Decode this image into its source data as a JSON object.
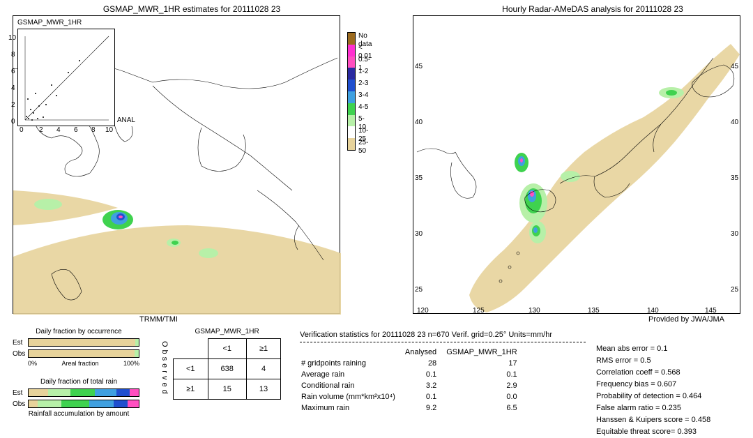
{
  "left_map": {
    "title": "GSMAP_MWR_1HR estimates for 20111028 23",
    "footer": "TRMM/TMI",
    "inset_label": "GSMAP_MWR_1HR",
    "inset_right_label": "ANAL",
    "inset_ticks_x": [
      "0",
      "2",
      "4",
      "6",
      "8",
      "10"
    ],
    "inset_ticks_y": [
      "0",
      "2",
      "4",
      "6",
      "8",
      "10"
    ]
  },
  "right_map": {
    "title": "Hourly Radar-AMeDAS analysis for 20111028 23",
    "footer": "Provided by JWA/JMA",
    "lat_ticks": [
      "25",
      "30",
      "35",
      "40",
      "45"
    ],
    "lon_ticks": [
      "120",
      "125",
      "130",
      "135",
      "140",
      "145"
    ]
  },
  "legend": {
    "labels": [
      "No data",
      "< 0.01",
      "0.5-1",
      "1-2",
      "2-3",
      "3-4",
      "4-5",
      "5-10",
      "10-25",
      "25-50"
    ],
    "colors": [
      "#e7d39b",
      "#ffffff",
      "#b7f0a8",
      "#3fd24f",
      "#3fa0e0",
      "#1f4fcf",
      "#2a2aa0",
      "#ff4fc0",
      "#ff2fd0",
      "#9c6b1f"
    ]
  },
  "fraction_occurrence": {
    "title": "Daily fraction by occurrence",
    "rows": [
      {
        "label": "Est",
        "segments": [
          {
            "color": "#e7d39b",
            "pct": 97
          },
          {
            "color": "#b7f0a8",
            "pct": 3
          }
        ]
      },
      {
        "label": "Obs",
        "segments": [
          {
            "color": "#e7d39b",
            "pct": 96
          },
          {
            "color": "#b7f0a8",
            "pct": 4
          }
        ]
      }
    ],
    "axis_left": "0%",
    "axis_mid": "Areal fraction",
    "axis_right": "100%"
  },
  "fraction_total": {
    "title": "Daily fraction of total rain",
    "rows": [
      {
        "label": "Est",
        "segments": [
          {
            "color": "#e7d39b",
            "pct": 18
          },
          {
            "color": "#b7f0a8",
            "pct": 20
          },
          {
            "color": "#3fd24f",
            "pct": 22
          },
          {
            "color": "#3fa0e0",
            "pct": 20
          },
          {
            "color": "#1f4fcf",
            "pct": 12
          },
          {
            "color": "#ff4fc0",
            "pct": 8
          }
        ]
      },
      {
        "label": "Obs",
        "segments": [
          {
            "color": "#e7d39b",
            "pct": 8
          },
          {
            "color": "#b7f0a8",
            "pct": 22
          },
          {
            "color": "#3fd24f",
            "pct": 25
          },
          {
            "color": "#3fa0e0",
            "pct": 22
          },
          {
            "color": "#1f4fcf",
            "pct": 13
          },
          {
            "color": "#ff4fc0",
            "pct": 10
          }
        ]
      }
    ],
    "footer": "Rainfall accumulation by amount"
  },
  "contingency": {
    "title": "GSMAP_MWR_1HR",
    "col_headers": [
      "<1",
      "≥1"
    ],
    "row_headers": [
      "<1",
      "≥1"
    ],
    "cells": [
      [
        "638",
        "4"
      ],
      [
        "15",
        "13"
      ]
    ],
    "side_label": "Observed"
  },
  "verif_header": "Verification statistics for 20111028 23   n=670   Verif. grid=0.25°   Units=mm/hr",
  "comparison": {
    "col1": "Analysed",
    "col2": "GSMAP_MWR_1HR",
    "rows": [
      {
        "name": "# gridpoints raining",
        "a": "28",
        "b": "17"
      },
      {
        "name": "Average rain",
        "a": "0.1",
        "b": "0.1"
      },
      {
        "name": "Conditional rain",
        "a": "3.2",
        "b": "2.9"
      },
      {
        "name": "Rain volume (mm*km²x10⁴)",
        "a": "0.1",
        "b": "0.0"
      },
      {
        "name": "Maximum rain",
        "a": "9.2",
        "b": "6.5"
      }
    ]
  },
  "scores": [
    {
      "name": "Mean abs error",
      "val": "0.1"
    },
    {
      "name": "RMS error",
      "val": "0.5"
    },
    {
      "name": "Correlation coeff",
      "val": "0.568"
    },
    {
      "name": "Frequency bias",
      "val": "0.607"
    },
    {
      "name": "Probability of detection",
      "val": "0.464"
    },
    {
      "name": "False alarm ratio",
      "val": "0.235"
    },
    {
      "name": "Hanssen & Kuipers score",
      "val": "0.458"
    },
    {
      "name": "Equitable threat score=",
      "val": "0.393"
    }
  ],
  "map_style": {
    "coast_color": "#000000",
    "swath_band_color": "#e7d39b",
    "precip_colors": [
      "#b7f0a8",
      "#3fd24f",
      "#3fa0e0",
      "#1f4fcf",
      "#ff4fc0"
    ]
  }
}
